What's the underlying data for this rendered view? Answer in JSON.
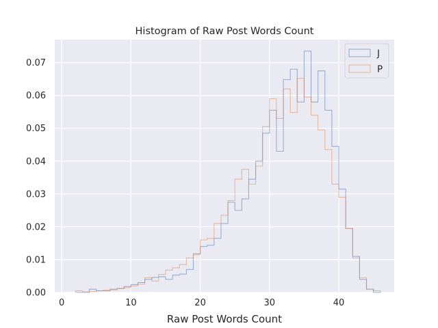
{
  "chart_data": {
    "type": "histogram-step",
    "title": "Histogram of Raw Post Words Count",
    "xlabel": "Raw Post Words Count",
    "ylabel": "",
    "xlim": [
      -1,
      48
    ],
    "ylim": [
      0,
      0.077
    ],
    "x_ticks": [
      0,
      10,
      20,
      30,
      40
    ],
    "y_ticks": [
      0.0,
      0.01,
      0.02,
      0.03,
      0.04,
      0.05,
      0.06,
      0.07
    ],
    "y_tick_labels": [
      "0.00",
      "0.01",
      "0.02",
      "0.03",
      "0.04",
      "0.05",
      "0.06",
      "0.07"
    ],
    "grid": true,
    "legend_position": "top-right",
    "series": [
      {
        "name": "J",
        "color": "#4c72b0",
        "edges": [
          2,
          3,
          4,
          5,
          6,
          7,
          8,
          9,
          10,
          11,
          12,
          13,
          14,
          15,
          16,
          17,
          18,
          19,
          20,
          21,
          22,
          23,
          24,
          25,
          26,
          27,
          28,
          29,
          30,
          31,
          32,
          33,
          34,
          35,
          36,
          37,
          38,
          39,
          40,
          41,
          42,
          43,
          44,
          45,
          46
        ],
        "values": [
          0.0,
          0.0,
          0.001,
          0.0005,
          0.0005,
          0.001,
          0.0012,
          0.0018,
          0.0024,
          0.003,
          0.004,
          0.0046,
          0.0048,
          0.004,
          0.0053,
          0.0056,
          0.007,
          0.0118,
          0.014,
          0.0144,
          0.0165,
          0.021,
          0.0275,
          0.025,
          0.0285,
          0.0345,
          0.04,
          0.0485,
          0.0555,
          0.043,
          0.0648,
          0.068,
          0.058,
          0.0735,
          0.058,
          0.0675,
          0.0555,
          0.0445,
          0.0315,
          0.0195,
          0.011,
          0.004,
          0.001,
          0.0
        ]
      },
      {
        "name": "P",
        "color": "#dd8452",
        "edges": [
          2,
          3,
          4,
          5,
          6,
          7,
          8,
          9,
          10,
          11,
          12,
          13,
          14,
          15,
          16,
          17,
          18,
          19,
          20,
          21,
          22,
          23,
          24,
          25,
          26,
          27,
          28,
          29,
          30,
          31,
          32,
          33,
          34,
          35,
          36,
          37,
          38,
          39,
          40,
          41,
          42,
          43,
          44,
          45,
          46
        ],
        "values": [
          0.0005,
          0.0002,
          0.0003,
          0.0005,
          0.0007,
          0.0008,
          0.0012,
          0.0015,
          0.002,
          0.0025,
          0.0045,
          0.0035,
          0.0055,
          0.0068,
          0.0075,
          0.0085,
          0.0105,
          0.0115,
          0.016,
          0.0165,
          0.021,
          0.0235,
          0.028,
          0.0345,
          0.0375,
          0.033,
          0.0385,
          0.0505,
          0.059,
          0.053,
          0.062,
          0.0548,
          0.0652,
          0.0595,
          0.054,
          0.0495,
          0.0435,
          0.033,
          0.029,
          0.0195,
          0.0105,
          0.0045,
          0.001,
          0.0005
        ]
      }
    ]
  }
}
